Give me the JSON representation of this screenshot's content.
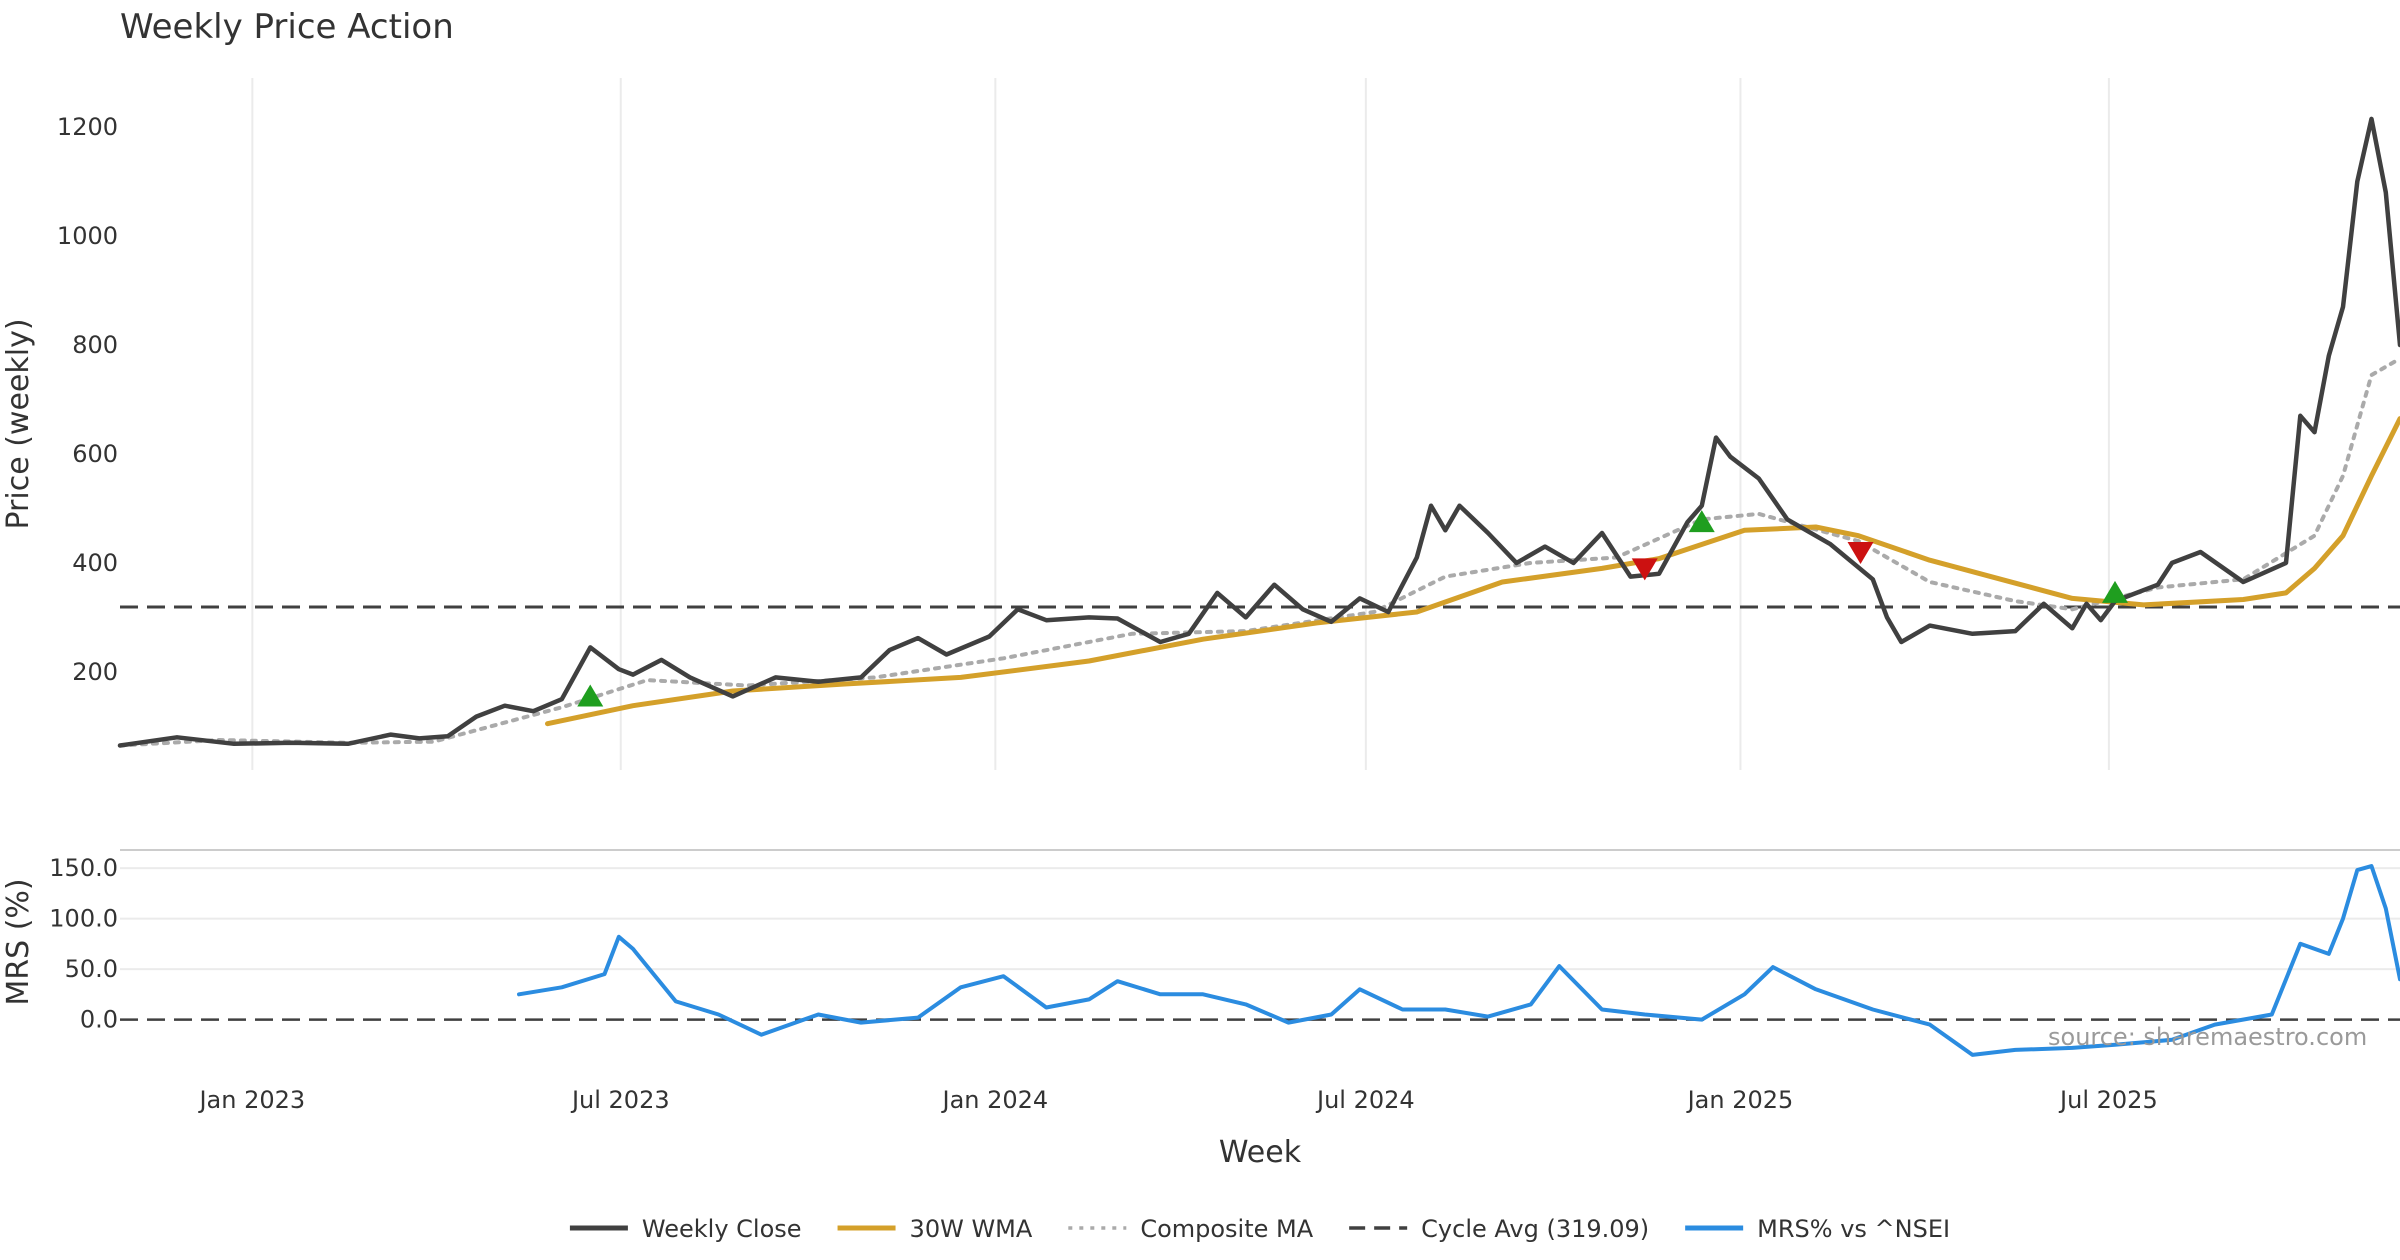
{
  "chart_data": {
    "type": "line",
    "title": "Weekly Price Action",
    "xlabel": "Week",
    "source_note": "source: sharemaestro.com",
    "colors": {
      "close": "#404040",
      "wma": "#d4a02a",
      "composite": "#aaaaaa",
      "cycle": "#404040",
      "mrs": "#2b8ce0",
      "buy": "#1f9e1f",
      "sell": "#cc1111"
    },
    "x_ticks": [
      {
        "label": "Jan 2023",
        "date": "2023-01-01"
      },
      {
        "label": "Jul 2023",
        "date": "2023-07-01"
      },
      {
        "label": "Jan 2024",
        "date": "2024-01-01"
      },
      {
        "label": "Jul 2024",
        "date": "2024-07-01"
      },
      {
        "label": "Jan 2025",
        "date": "2025-01-01"
      },
      {
        "label": "Jul 2025",
        "date": "2025-07-01"
      }
    ],
    "x_range": [
      "2022-10-28",
      "2025-11-21"
    ],
    "price_panel": {
      "ylabel": "Price (weekly)",
      "ylim": [
        20,
        1290
      ],
      "y_ticks": [
        "200",
        "400",
        "600",
        "800",
        "1000",
        "1200"
      ],
      "cycle_avg": 319.09,
      "weekly_close": [
        [
          "2022-10-28",
          65
        ],
        [
          "2022-11-25",
          80
        ],
        [
          "2022-12-23",
          68
        ],
        [
          "2023-01-20",
          70
        ],
        [
          "2023-02-17",
          68
        ],
        [
          "2023-03-10",
          85
        ],
        [
          "2023-03-24",
          78
        ],
        [
          "2023-04-07",
          82
        ],
        [
          "2023-04-21",
          118
        ],
        [
          "2023-05-05",
          138
        ],
        [
          "2023-05-19",
          128
        ],
        [
          "2023-06-02",
          150
        ],
        [
          "2023-06-16",
          245
        ],
        [
          "2023-06-30",
          205
        ],
        [
          "2023-07-07",
          195
        ],
        [
          "2023-07-21",
          222
        ],
        [
          "2023-08-04",
          190
        ],
        [
          "2023-08-25",
          155
        ],
        [
          "2023-09-15",
          190
        ],
        [
          "2023-10-06",
          182
        ],
        [
          "2023-10-27",
          190
        ],
        [
          "2023-11-10",
          240
        ],
        [
          "2023-11-24",
          262
        ],
        [
          "2023-12-08",
          232
        ],
        [
          "2023-12-29",
          265
        ],
        [
          "2024-01-12",
          315
        ],
        [
          "2024-01-26",
          295
        ],
        [
          "2024-02-16",
          300
        ],
        [
          "2024-03-01",
          298
        ],
        [
          "2024-03-22",
          255
        ],
        [
          "2024-04-05",
          270
        ],
        [
          "2024-04-19",
          345
        ],
        [
          "2024-05-03",
          300
        ],
        [
          "2024-05-17",
          360
        ],
        [
          "2024-05-31",
          315
        ],
        [
          "2024-06-14",
          292
        ],
        [
          "2024-06-28",
          335
        ],
        [
          "2024-07-12",
          310
        ],
        [
          "2024-07-26",
          410
        ],
        [
          "2024-08-02",
          505
        ],
        [
          "2024-08-09",
          460
        ],
        [
          "2024-08-16",
          505
        ],
        [
          "2024-08-30",
          455
        ],
        [
          "2024-09-13",
          400
        ],
        [
          "2024-09-27",
          430
        ],
        [
          "2024-10-11",
          400
        ],
        [
          "2024-10-25",
          455
        ],
        [
          "2024-11-08",
          375
        ],
        [
          "2024-11-22",
          380
        ],
        [
          "2024-12-06",
          475
        ],
        [
          "2024-12-13",
          505
        ],
        [
          "2024-12-20",
          630
        ],
        [
          "2024-12-27",
          595
        ],
        [
          "2025-01-10",
          555
        ],
        [
          "2025-01-24",
          480
        ],
        [
          "2025-02-14",
          435
        ],
        [
          "2025-03-07",
          370
        ],
        [
          "2025-03-14",
          300
        ],
        [
          "2025-03-21",
          255
        ],
        [
          "2025-04-04",
          285
        ],
        [
          "2025-04-25",
          270
        ],
        [
          "2025-05-16",
          275
        ],
        [
          "2025-05-30",
          325
        ],
        [
          "2025-06-13",
          280
        ],
        [
          "2025-06-20",
          325
        ],
        [
          "2025-06-27",
          295
        ],
        [
          "2025-07-04",
          330
        ],
        [
          "2025-07-25",
          360
        ],
        [
          "2025-08-01",
          400
        ],
        [
          "2025-08-15",
          420
        ],
        [
          "2025-09-05",
          365
        ],
        [
          "2025-09-26",
          400
        ],
        [
          "2025-10-03",
          670
        ],
        [
          "2025-10-10",
          640
        ],
        [
          "2025-10-17",
          780
        ],
        [
          "2025-10-24",
          870
        ],
        [
          "2025-10-31",
          1100
        ],
        [
          "2025-11-07",
          1215
        ],
        [
          "2025-11-14",
          1080
        ],
        [
          "2025-11-21",
          800
        ]
      ],
      "wma_30w": [
        [
          "2023-05-26",
          105
        ],
        [
          "2023-07-07",
          138
        ],
        [
          "2023-08-25",
          165
        ],
        [
          "2023-10-20",
          178
        ],
        [
          "2023-12-15",
          190
        ],
        [
          "2024-02-16",
          220
        ],
        [
          "2024-04-12",
          260
        ],
        [
          "2024-06-07",
          290
        ],
        [
          "2024-07-26",
          310
        ],
        [
          "2024-09-06",
          365
        ],
        [
          "2024-10-25",
          390
        ],
        [
          "2024-11-22",
          408
        ],
        [
          "2025-01-03",
          460
        ],
        [
          "2025-02-07",
          466
        ],
        [
          "2025-02-28",
          450
        ],
        [
          "2025-04-04",
          405
        ],
        [
          "2025-05-09",
          370
        ],
        [
          "2025-06-13",
          335
        ],
        [
          "2025-07-18",
          323
        ],
        [
          "2025-09-05",
          333
        ],
        [
          "2025-09-26",
          345
        ],
        [
          "2025-10-10",
          390
        ],
        [
          "2025-10-24",
          450
        ],
        [
          "2025-11-07",
          560
        ],
        [
          "2025-11-21",
          665
        ]
      ],
      "composite_ma": [
        [
          "2022-10-28",
          65
        ],
        [
          "2022-12-16",
          75
        ],
        [
          "2023-02-17",
          70
        ],
        [
          "2023-03-31",
          72
        ],
        [
          "2023-06-02",
          135
        ],
        [
          "2023-07-14",
          185
        ],
        [
          "2023-09-01",
          175
        ],
        [
          "2023-11-03",
          190
        ],
        [
          "2024-01-05",
          225
        ],
        [
          "2024-03-08",
          270
        ],
        [
          "2024-05-03",
          275
        ],
        [
          "2024-07-05",
          310
        ],
        [
          "2024-08-09",
          375
        ],
        [
          "2024-09-20",
          400
        ],
        [
          "2024-11-01",
          410
        ],
        [
          "2024-12-13",
          480
        ],
        [
          "2025-01-10",
          490
        ],
        [
          "2025-02-28",
          440
        ],
        [
          "2025-04-04",
          365
        ],
        [
          "2025-05-16",
          330
        ],
        [
          "2025-06-13",
          315
        ],
        [
          "2025-07-25",
          355
        ],
        [
          "2025-09-05",
          370
        ],
        [
          "2025-10-10",
          450
        ],
        [
          "2025-10-24",
          560
        ],
        [
          "2025-11-07",
          745
        ],
        [
          "2025-11-21",
          775
        ]
      ],
      "buy_signals": [
        [
          "2023-06-16",
          155
        ],
        [
          "2024-12-13",
          475
        ],
        [
          "2025-07-04",
          345
        ]
      ],
      "sell_signals": [
        [
          "2024-11-15",
          390
        ],
        [
          "2025-03-01",
          420
        ]
      ]
    },
    "mrs_panel": {
      "ylabel": "MRS (%)",
      "ylim": [
        -42,
        160
      ],
      "y_ticks": [
        "0.0",
        "50.0",
        "100.0",
        "150.0"
      ],
      "zero_line": 0,
      "mrs": [
        [
          "2023-05-12",
          25
        ],
        [
          "2023-06-02",
          32
        ],
        [
          "2023-06-23",
          45
        ],
        [
          "2023-06-30",
          82
        ],
        [
          "2023-07-07",
          70
        ],
        [
          "2023-07-28",
          18
        ],
        [
          "2023-08-18",
          5
        ],
        [
          "2023-09-08",
          -15
        ],
        [
          "2023-10-06",
          5
        ],
        [
          "2023-10-27",
          -3
        ],
        [
          "2023-11-24",
          2
        ],
        [
          "2023-12-15",
          32
        ],
        [
          "2024-01-05",
          43
        ],
        [
          "2024-01-26",
          12
        ],
        [
          "2024-02-16",
          20
        ],
        [
          "2024-03-01",
          38
        ],
        [
          "2024-03-22",
          25
        ],
        [
          "2024-04-12",
          25
        ],
        [
          "2024-05-03",
          15
        ],
        [
          "2024-05-24",
          -3
        ],
        [
          "2024-06-14",
          5
        ],
        [
          "2024-06-28",
          30
        ],
        [
          "2024-07-19",
          10
        ],
        [
          "2024-08-09",
          10
        ],
        [
          "2024-08-30",
          3
        ],
        [
          "2024-09-20",
          15
        ],
        [
          "2024-10-04",
          53
        ],
        [
          "2024-10-25",
          10
        ],
        [
          "2024-11-15",
          5
        ],
        [
          "2024-12-13",
          0
        ],
        [
          "2025-01-03",
          25
        ],
        [
          "2025-01-17",
          52
        ],
        [
          "2025-02-07",
          30
        ],
        [
          "2025-03-07",
          10
        ],
        [
          "2025-04-04",
          -5
        ],
        [
          "2025-04-25",
          -35
        ],
        [
          "2025-05-16",
          -30
        ],
        [
          "2025-06-13",
          -28
        ],
        [
          "2025-07-04",
          -25
        ],
        [
          "2025-08-01",
          -20
        ],
        [
          "2025-08-22",
          -5
        ],
        [
          "2025-09-19",
          5
        ],
        [
          "2025-10-03",
          75
        ],
        [
          "2025-10-17",
          65
        ],
        [
          "2025-10-24",
          100
        ],
        [
          "2025-10-31",
          148
        ],
        [
          "2025-11-07",
          152
        ],
        [
          "2025-11-14",
          110
        ],
        [
          "2025-11-21",
          40
        ]
      ]
    },
    "legend": [
      {
        "label": "Weekly Close",
        "style": "solid",
        "key": "close"
      },
      {
        "label": "30W WMA",
        "style": "solid",
        "key": "wma"
      },
      {
        "label": "Composite MA",
        "style": "dotted",
        "key": "composite"
      },
      {
        "label": "Cycle Avg (319.09)",
        "style": "dashed",
        "key": "cycle"
      },
      {
        "label": "MRS% vs ^NSEI",
        "style": "solid",
        "key": "mrs"
      }
    ]
  }
}
